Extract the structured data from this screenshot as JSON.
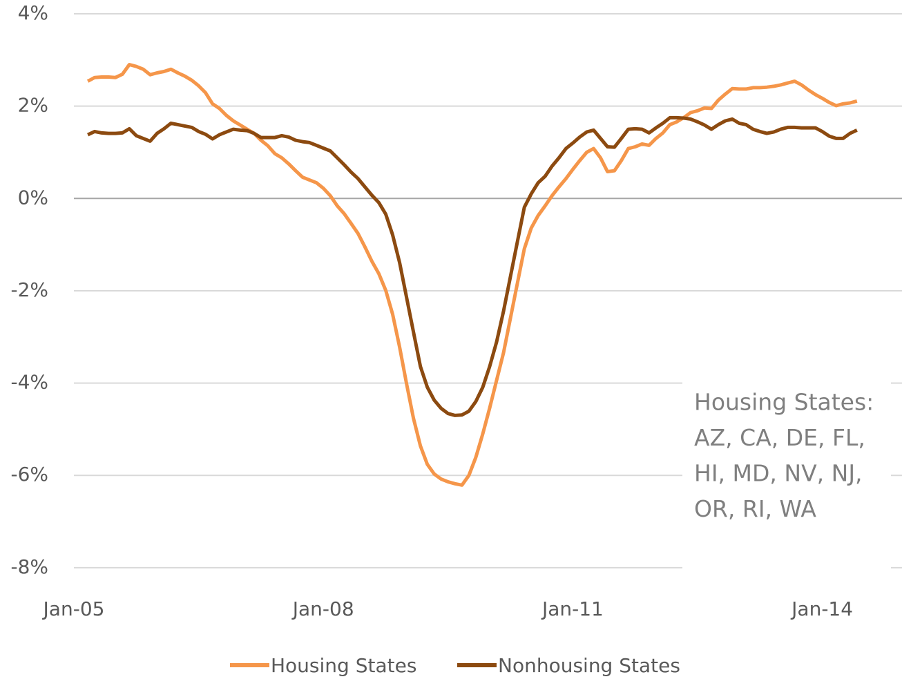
{
  "chart_data": {
    "type": "line",
    "x": [
      2,
      3,
      4,
      5,
      6,
      7,
      8,
      9,
      10,
      11,
      12,
      13,
      14,
      15,
      16,
      17,
      18,
      19,
      20,
      21,
      22,
      23,
      24,
      25,
      26,
      27,
      28,
      29,
      30,
      31,
      32,
      33,
      34,
      35,
      36,
      37,
      38,
      39,
      40,
      41,
      42,
      43,
      44,
      45,
      46,
      47,
      48,
      49,
      50,
      51,
      52,
      53,
      54,
      55,
      56,
      57,
      58,
      59,
      60,
      61,
      62,
      63,
      64,
      65,
      66,
      67,
      68,
      69,
      70,
      71,
      72,
      73,
      74,
      75,
      76,
      77,
      78,
      79,
      80,
      81,
      82,
      83,
      84,
      85,
      86,
      87,
      88,
      89,
      90,
      91,
      92,
      93,
      94,
      95,
      96,
      97,
      98,
      99,
      100,
      101,
      102,
      103,
      104,
      105,
      106,
      107,
      108,
      109,
      110,
      111,
      112,
      113
    ],
    "xlim": [
      0,
      119.5
    ],
    "xticks": [
      {
        "value": 0,
        "label": "Jan-05"
      },
      {
        "value": 36,
        "label": "Jan-08"
      },
      {
        "value": 72,
        "label": "Jan-11"
      },
      {
        "value": 108,
        "label": "Jan-14"
      }
    ],
    "ylim": [
      -9,
      4
    ],
    "yticks": [
      {
        "value": 4,
        "label": "4%"
      },
      {
        "value": 2,
        "label": "2%"
      },
      {
        "value": 0,
        "label": "0%"
      },
      {
        "value": -2,
        "label": "-2%"
      },
      {
        "value": -4,
        "label": "-4%"
      },
      {
        "value": -6,
        "label": "-6%"
      },
      {
        "value": -8,
        "label": "-8%"
      }
    ],
    "grid": true,
    "legend": "bottom",
    "annotation": [
      "Housing States:",
      "AZ, CA, DE, FL,",
      "HI, MD, NV, NJ,",
      "OR, RI, WA"
    ],
    "series": [
      {
        "name": "Housing States",
        "color": "#f5964a",
        "values": [
          2.54,
          2.62,
          2.63,
          2.63,
          2.62,
          2.69,
          2.9,
          2.86,
          2.8,
          2.68,
          2.72,
          2.75,
          2.8,
          2.72,
          2.65,
          2.56,
          2.44,
          2.29,
          2.05,
          1.95,
          1.8,
          1.68,
          1.59,
          1.5,
          1.41,
          1.26,
          1.14,
          0.97,
          0.88,
          0.75,
          0.6,
          0.46,
          0.4,
          0.34,
          0.22,
          0.06,
          -0.16,
          -0.33,
          -0.54,
          -0.76,
          -1.05,
          -1.36,
          -1.63,
          -1.99,
          -2.51,
          -3.22,
          -4.01,
          -4.76,
          -5.36,
          -5.76,
          -5.97,
          -6.08,
          -6.14,
          -6.18,
          -6.21,
          -6.0,
          -5.61,
          -5.1,
          -4.54,
          -3.94,
          -3.34,
          -2.59,
          -1.84,
          -1.09,
          -0.64,
          -0.37,
          -0.16,
          0.06,
          0.25,
          0.43,
          0.63,
          0.82,
          1.0,
          1.08,
          0.88,
          0.58,
          0.6,
          0.82,
          1.08,
          1.12,
          1.18,
          1.15,
          1.3,
          1.42,
          1.6,
          1.66,
          1.75,
          1.86,
          1.9,
          1.96,
          1.95,
          2.13,
          2.26,
          2.38,
          2.37,
          2.37,
          2.4,
          2.4,
          2.41,
          2.43,
          2.46,
          2.5,
          2.54,
          2.46,
          2.35,
          2.25,
          2.17,
          2.08,
          2.01,
          2.05,
          2.07,
          2.11
        ]
      },
      {
        "name": "Nonhousing States",
        "color": "#8c4a10",
        "values": [
          1.38,
          1.45,
          1.42,
          1.41,
          1.41,
          1.42,
          1.51,
          1.36,
          1.3,
          1.24,
          1.41,
          1.51,
          1.63,
          1.6,
          1.57,
          1.54,
          1.45,
          1.39,
          1.29,
          1.38,
          1.44,
          1.5,
          1.48,
          1.47,
          1.41,
          1.32,
          1.32,
          1.32,
          1.36,
          1.33,
          1.26,
          1.23,
          1.21,
          1.15,
          1.09,
          1.03,
          0.88,
          0.73,
          0.57,
          0.43,
          0.25,
          0.07,
          -0.09,
          -0.34,
          -0.79,
          -1.39,
          -2.14,
          -2.89,
          -3.64,
          -4.09,
          -4.37,
          -4.55,
          -4.66,
          -4.7,
          -4.69,
          -4.61,
          -4.4,
          -4.09,
          -3.64,
          -3.11,
          -2.44,
          -1.69,
          -0.94,
          -0.19,
          0.1,
          0.34,
          0.48,
          0.7,
          0.88,
          1.08,
          1.2,
          1.33,
          1.44,
          1.48,
          1.3,
          1.12,
          1.11,
          1.3,
          1.5,
          1.51,
          1.5,
          1.42,
          1.53,
          1.63,
          1.75,
          1.75,
          1.74,
          1.72,
          1.66,
          1.59,
          1.5,
          1.6,
          1.68,
          1.72,
          1.63,
          1.6,
          1.5,
          1.45,
          1.41,
          1.44,
          1.5,
          1.54,
          1.54,
          1.53,
          1.53,
          1.53,
          1.45,
          1.35,
          1.3,
          1.3,
          1.41,
          1.48
        ]
      }
    ]
  }
}
